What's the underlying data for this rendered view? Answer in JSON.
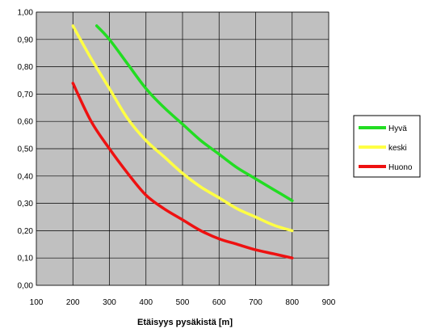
{
  "chart_data": {
    "type": "line",
    "title": "",
    "xlabel": "Etäisyys pysäkistä [m]",
    "ylabel": "",
    "xlim": [
      100,
      900
    ],
    "ylim": [
      0,
      1.0
    ],
    "x_ticks": [
      "100",
      "200",
      "300",
      "400",
      "500",
      "600",
      "700",
      "800",
      "900"
    ],
    "y_ticks": [
      "0,00",
      "0,10",
      "0,20",
      "0,30",
      "0,40",
      "0,50",
      "0,60",
      "0,70",
      "0,80",
      "0,90",
      "1,00"
    ],
    "grid": true,
    "plot_background": "#c0c0c0",
    "legend_position": "right",
    "series": [
      {
        "name": "Hyvä",
        "color": "#22dd22",
        "x": [
          265,
          300,
          350,
          400,
          450,
          500,
          550,
          600,
          650,
          700,
          750,
          800
        ],
        "y": [
          0.95,
          0.9,
          0.81,
          0.72,
          0.65,
          0.59,
          0.53,
          0.48,
          0.43,
          0.39,
          0.35,
          0.31
        ]
      },
      {
        "name": "keski",
        "color": "#ffff44",
        "x": [
          200,
          250,
          300,
          350,
          400,
          450,
          500,
          550,
          600,
          650,
          700,
          750,
          800
        ],
        "y": [
          0.95,
          0.83,
          0.72,
          0.61,
          0.53,
          0.47,
          0.41,
          0.36,
          0.32,
          0.28,
          0.25,
          0.22,
          0.2
        ]
      },
      {
        "name": "Huono",
        "color": "#ee1111",
        "x": [
          200,
          250,
          300,
          350,
          400,
          450,
          500,
          550,
          600,
          650,
          700,
          750,
          800
        ],
        "y": [
          0.74,
          0.6,
          0.5,
          0.41,
          0.33,
          0.28,
          0.24,
          0.2,
          0.17,
          0.15,
          0.13,
          0.115,
          0.1
        ]
      }
    ]
  }
}
